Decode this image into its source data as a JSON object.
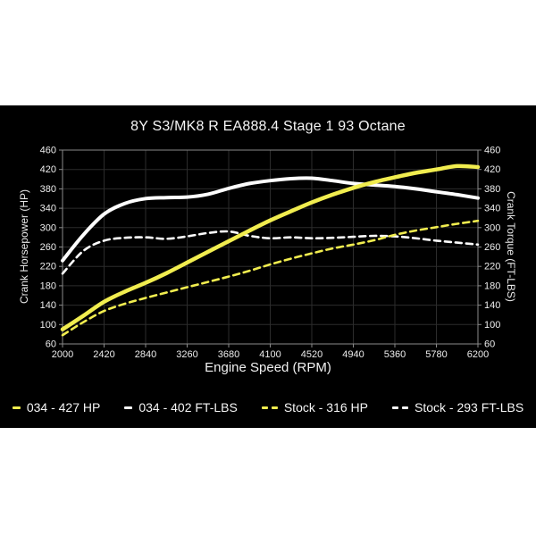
{
  "chart_data": {
    "type": "line",
    "title": "8Y S3/MK8 R EA888.4 Stage 1 93 Octane",
    "xlabel": "Engine Speed (RPM)",
    "ylabel_left": "Crank Horsepower (HP)",
    "ylabel_right": "Crank Torque (FT-LBS)",
    "xlim": [
      2000,
      6200
    ],
    "ylim": [
      60,
      460
    ],
    "x_ticks": [
      2000,
      2420,
      2840,
      3260,
      3680,
      4100,
      4520,
      4940,
      5360,
      5780,
      6200
    ],
    "y_ticks": [
      460,
      420,
      380,
      340,
      300,
      260,
      220,
      180,
      140,
      100,
      60
    ],
    "grid": true,
    "legend_position": "bottom",
    "rpm": [
      2000,
      2210,
      2420,
      2630,
      2840,
      3050,
      3260,
      3470,
      3680,
      3890,
      4100,
      4310,
      4520,
      4730,
      4940,
      5150,
      5360,
      5570,
      5780,
      5990,
      6200
    ],
    "series": [
      {
        "name": "Stock Torque",
        "legend_label": "Stock - 293 FT-LBS",
        "axis": "right",
        "color": "#fdfdfd",
        "style": "dashed",
        "peak": 293,
        "values": [
          205,
          252,
          273,
          279,
          280,
          277,
          282,
          289,
          292,
          283,
          278,
          280,
          278,
          279,
          281,
          283,
          282,
          278,
          273,
          269,
          265
        ]
      },
      {
        "name": "Stock HP",
        "legend_label": "Stock - 316 HP",
        "axis": "left",
        "color": "#f1ed4f",
        "style": "dashed",
        "peak": 316,
        "values": [
          78,
          105,
          128,
          143,
          155,
          166,
          177,
          188,
          199,
          211,
          224,
          236,
          247,
          257,
          265,
          274,
          285,
          294,
          301,
          308,
          314
        ]
      },
      {
        "name": "034 Torque",
        "legend_label": "034 - 402 FT-LBS",
        "axis": "right",
        "color": "#fdfdfd",
        "style": "solid",
        "peak": 402,
        "values": [
          232,
          285,
          328,
          350,
          360,
          362,
          363,
          369,
          381,
          391,
          397,
          401,
          402,
          397,
          391,
          388,
          385,
          380,
          374,
          368,
          361
        ]
      },
      {
        "name": "034 HP",
        "legend_label": "034 - 427 HP",
        "axis": "left",
        "color": "#f1ed4f",
        "style": "solid",
        "peak": 427,
        "values": [
          90,
          118,
          147,
          168,
          186,
          206,
          228,
          250,
          272,
          294,
          315,
          334,
          352,
          368,
          382,
          394,
          404,
          413,
          420,
          427,
          425
        ]
      }
    ],
    "legend_order": [
      3,
      2,
      1,
      0
    ],
    "colors": {
      "panel_background": "#000000",
      "page_background": "#ffffff",
      "grid": "#2c2c2c",
      "frame": "#8a8a8a",
      "text": "#ededed",
      "accent_yellow": "#f1ed4f",
      "accent_white": "#fdfdfd"
    }
  }
}
